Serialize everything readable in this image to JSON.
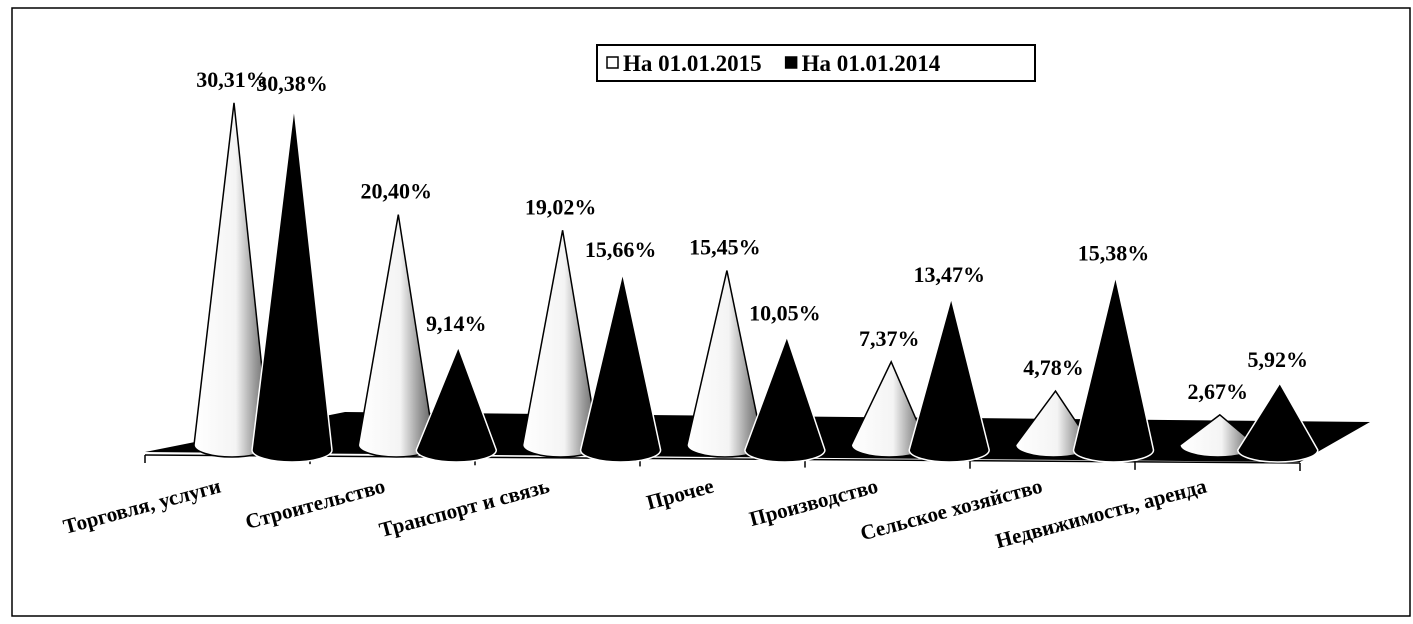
{
  "chart_data": {
    "type": "cone3d",
    "categories": [
      "Торговля, услуги",
      "Строительство",
      "Транспорт и связь",
      "Прочее",
      "Производство",
      "Сельское хозяйство",
      "Недвижимость, аренда"
    ],
    "series": [
      {
        "name": "На 01.01.2015",
        "color": "#ffffff",
        "values": [
          30.31,
          20.4,
          19.02,
          15.45,
          7.37,
          4.78,
          2.67
        ],
        "value_labels": [
          "30,31%",
          "20,40%",
          "19,02%",
          "15,45%",
          "7,37%",
          "4,78%",
          "2,67%"
        ]
      },
      {
        "name": "На 01.01.2014",
        "color": "#000000",
        "values": [
          30.38,
          9.14,
          15.66,
          10.05,
          13.47,
          15.38,
          5.92
        ],
        "value_labels": [
          "30,38%",
          "9,14%",
          "15,66%",
          "10,05%",
          "13,47%",
          "15,38%",
          "5,92%"
        ]
      }
    ],
    "legend": "top"
  }
}
